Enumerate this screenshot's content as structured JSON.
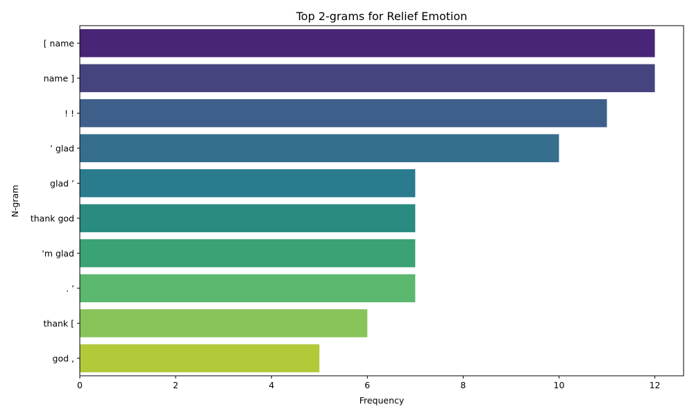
{
  "chart_data": {
    "type": "bar",
    "orientation": "horizontal",
    "title": "Top 2-grams for Relief Emotion",
    "xlabel": "Frequency",
    "ylabel": "N-gram",
    "categories": [
      "[ name",
      "name ]",
      "! !",
      "’ glad",
      "glad ’",
      "thank god",
      "'m glad",
      ". ’",
      "thank [",
      "god ,"
    ],
    "values": [
      12,
      12,
      11,
      10,
      7,
      7,
      7,
      7,
      6,
      5
    ],
    "xlim": [
      0,
      12.6
    ],
    "xticks": [
      0,
      2,
      4,
      6,
      8,
      10,
      12
    ],
    "grid": false,
    "colors": [
      "#482576",
      "#46447f",
      "#3e5f8a",
      "#366e8d",
      "#2b7b8e",
      "#2a8b80",
      "#3aa274",
      "#5cb76f",
      "#88c45a",
      "#b2c93a"
    ]
  }
}
